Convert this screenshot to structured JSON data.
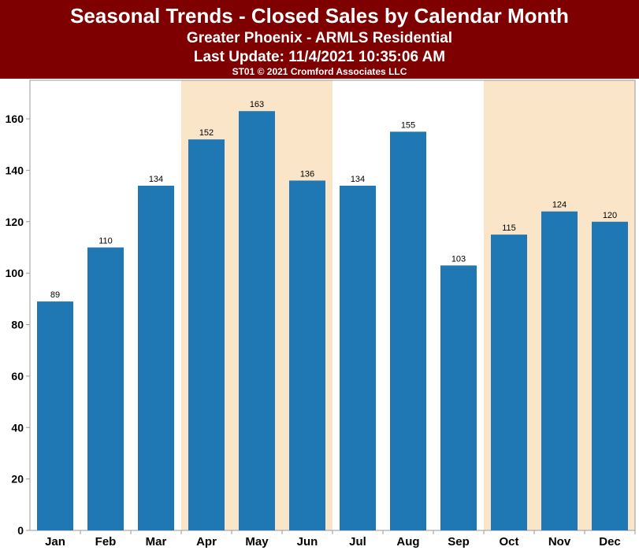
{
  "header": {
    "title": "Seasonal Trends - Closed Sales by Calendar Month",
    "subtitle": "Greater Phoenix - ARMLS Residential",
    "update": "Last Update: 11/4/2021 10:35:06 AM",
    "copyright": "ST01 © 2021 Cromford Associates LLC"
  },
  "colors": {
    "banner": "#7f0000",
    "bar": "#1f77b4",
    "highlight": "#fae5c8"
  },
  "chart_data": {
    "type": "bar",
    "title": "Seasonal Trends - Closed Sales by Calendar Month",
    "xlabel": "",
    "ylabel": "",
    "ylim": [
      0,
      175
    ],
    "yticks": [
      0,
      20,
      40,
      60,
      80,
      100,
      120,
      140,
      160
    ],
    "grid": false,
    "categories": [
      "Jan",
      "Feb",
      "Mar",
      "Apr",
      "May",
      "Jun",
      "Jul",
      "Aug",
      "Sep",
      "Oct",
      "Nov",
      "Dec"
    ],
    "values": [
      89,
      110,
      134,
      152,
      163,
      136,
      134,
      155,
      103,
      115,
      124,
      120
    ],
    "highlight_ranges": [
      [
        "Apr",
        "Jun"
      ],
      [
        "Oct",
        "Dec"
      ]
    ]
  }
}
